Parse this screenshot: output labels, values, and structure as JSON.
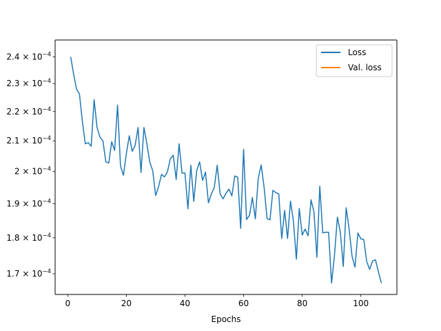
{
  "chart_data": {
    "type": "line",
    "title": "",
    "xlabel": "Epochs",
    "ylabel": "",
    "xlim": [
      -4.3,
      112.3
    ],
    "ylim": [
      0.0001645,
      0.0002465
    ],
    "yscale": "log",
    "grid": false,
    "legend_position": "top-right",
    "xticks": [
      0,
      20,
      40,
      60,
      80,
      100
    ],
    "xtick_labels": [
      "0",
      "20",
      "40",
      "60",
      "80",
      "100"
    ],
    "yticks": [
      0.00017,
      0.00018,
      0.00019,
      0.0002,
      0.00021,
      0.00022,
      0.00023,
      0.00024
    ],
    "ytick_labels": [
      "1.7",
      "1.8",
      "1.9",
      "2",
      "2.1",
      "2.2",
      "2.3",
      "2.4"
    ],
    "ytick_label_suffix": " × 10",
    "ytick_label_exponent": "−4",
    "series": [
      {
        "name": "Loss",
        "color": "#1f77b4",
        "x": [
          1,
          2,
          3,
          4,
          5,
          6,
          7,
          8,
          9,
          10,
          11,
          12,
          13,
          14,
          15,
          16,
          17,
          18,
          19,
          20,
          21,
          22,
          23,
          24,
          25,
          26,
          27,
          28,
          29,
          30,
          31,
          32,
          33,
          34,
          35,
          36,
          37,
          38,
          39,
          40,
          41,
          42,
          43,
          44,
          45,
          46,
          47,
          48,
          49,
          50,
          51,
          52,
          53,
          54,
          55,
          56,
          57,
          58,
          59,
          60,
          61,
          62,
          63,
          64,
          65,
          66,
          67,
          68,
          69,
          70,
          71,
          72,
          73,
          74,
          75,
          76,
          77,
          78,
          79,
          80,
          81,
          82,
          83,
          84,
          85,
          86,
          87,
          88,
          89,
          90,
          91,
          92,
          93,
          94,
          95,
          96,
          97,
          98,
          99,
          100,
          101,
          102,
          103,
          104,
          105,
          106,
          107
        ],
        "values": [
          0.00024,
          0.0002335,
          0.000228,
          0.0002262,
          0.0002165,
          0.000209,
          0.0002094,
          0.0002082,
          0.0002242,
          0.0002145,
          0.0002112,
          0.00021,
          0.0002031,
          0.0002027,
          0.0002097,
          0.0002068,
          0.0002223,
          0.0002018,
          0.0001988,
          0.0002058,
          0.0002117,
          0.0002065,
          0.0002085,
          0.0002145,
          0.0001997,
          0.0002145,
          0.000209,
          0.000203,
          0.0002002,
          0.0001925,
          0.0001953,
          0.0001991,
          0.0001983,
          0.0001998,
          0.0002041,
          0.0002052,
          0.0001975,
          0.000209,
          0.0001995,
          0.0001995,
          0.0001885,
          0.000202,
          0.0001907,
          0.0002003,
          0.0002031,
          0.0001972,
          0.0001998,
          0.0001903,
          0.000193,
          0.000195,
          0.000202,
          0.000193,
          0.0001915,
          0.0001932,
          0.0001945,
          0.0001924,
          0.0001986,
          0.0001982,
          0.0001827,
          0.0002072,
          0.0001853,
          0.0001865,
          0.0001919,
          0.0001855,
          0.0001978,
          0.0002021,
          0.000195,
          0.0001856,
          0.0001852,
          0.0001941,
          0.0001934,
          0.000193,
          0.0001798,
          0.000188,
          0.0001798,
          0.0001908,
          0.0001848,
          0.000174,
          0.0001886,
          0.0001808,
          0.0001825,
          0.0001806,
          0.0001912,
          0.0001876,
          0.0001745,
          0.0001954,
          0.0001814,
          0.0001816,
          0.0001816,
          0.0001675,
          0.000175,
          0.000186,
          0.0001816,
          0.000172,
          0.0001888,
          0.0001825,
          0.0001748,
          0.0001718,
          0.0001814,
          0.0001797,
          0.0001795,
          0.0001733,
          0.0001712,
          0.0001735,
          0.0001738,
          0.0001705,
          0.0001675
        ]
      },
      {
        "name": "Val. loss",
        "color": "#ff7f0e",
        "x": [],
        "values": []
      }
    ]
  }
}
